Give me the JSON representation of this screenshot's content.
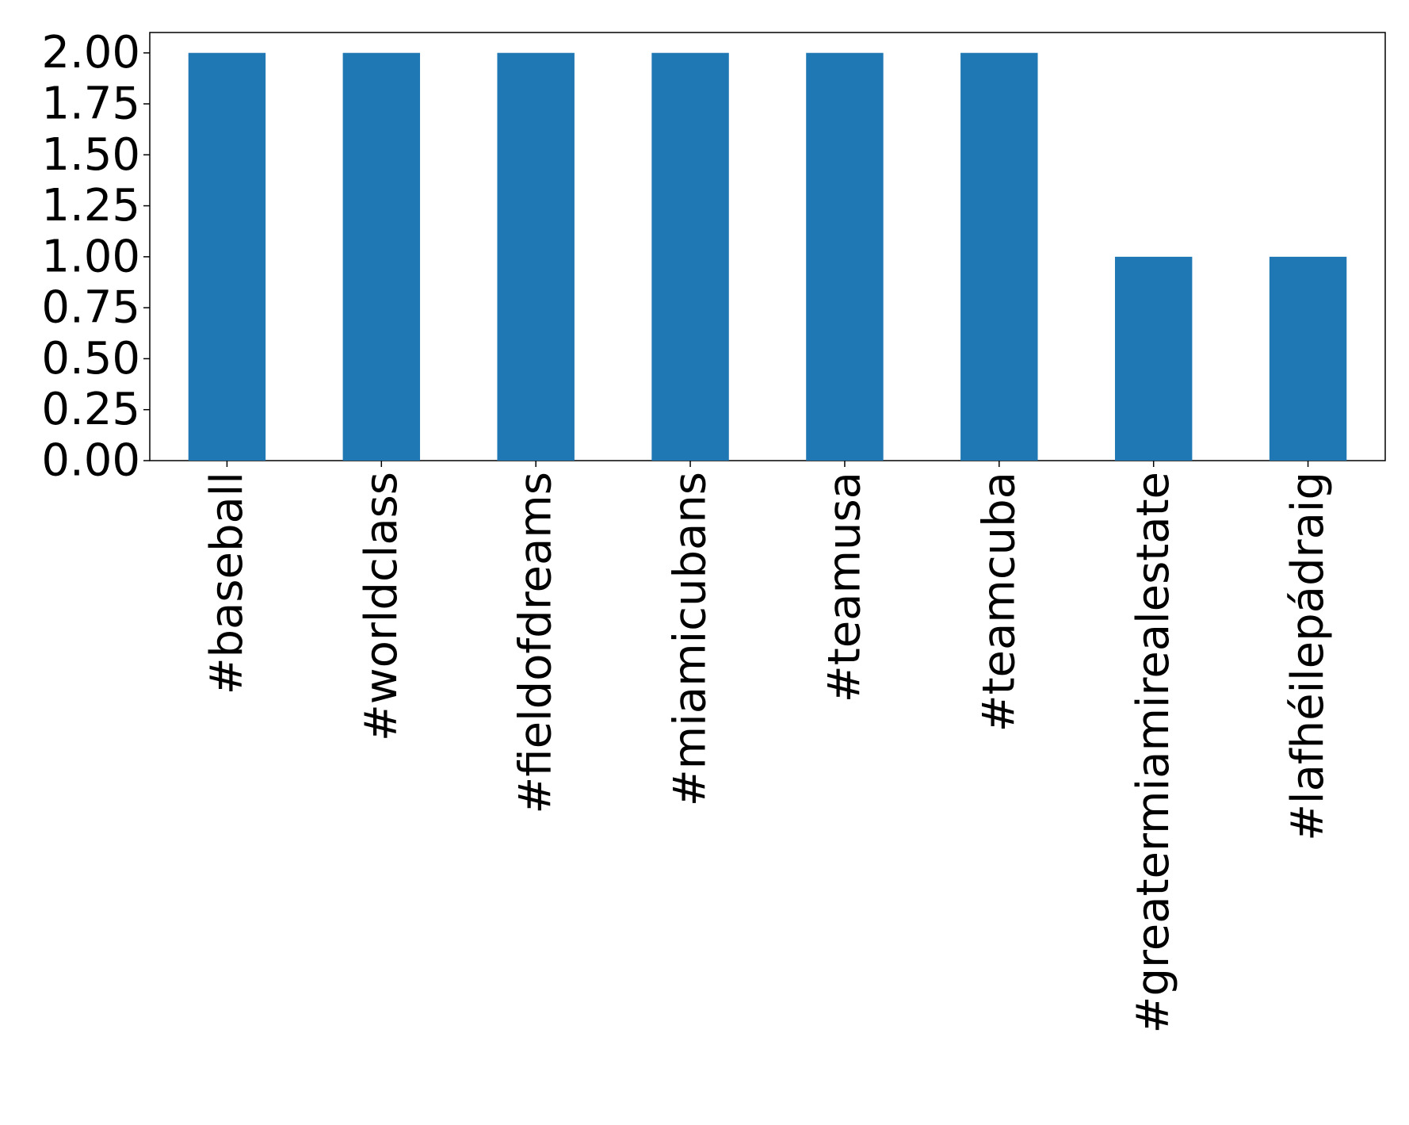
{
  "chart_data": {
    "type": "bar",
    "categories": [
      "#baseball",
      "#worldclass",
      "#fieldofdreams",
      "#miamicubans",
      "#teamusa",
      "#teamcuba",
      "#greatermiamirealestate",
      "#lafhéilepádraig"
    ],
    "values": [
      2,
      2,
      2,
      2,
      2,
      2,
      1,
      1
    ],
    "color": "#1f77b4",
    "ylim": [
      0,
      2.1
    ],
    "yticks": [
      {
        "value": 0,
        "label": "0.00"
      },
      {
        "value": 0.25,
        "label": "0.25"
      },
      {
        "value": 0.5,
        "label": "0.50"
      },
      {
        "value": 0.75,
        "label": "0.75"
      },
      {
        "value": 1,
        "label": "1.00"
      },
      {
        "value": 1.25,
        "label": "1.25"
      },
      {
        "value": 1.5,
        "label": "1.50"
      },
      {
        "value": 1.75,
        "label": "1.75"
      },
      {
        "value": 2,
        "label": "2.00"
      }
    ],
    "grid": false
  }
}
